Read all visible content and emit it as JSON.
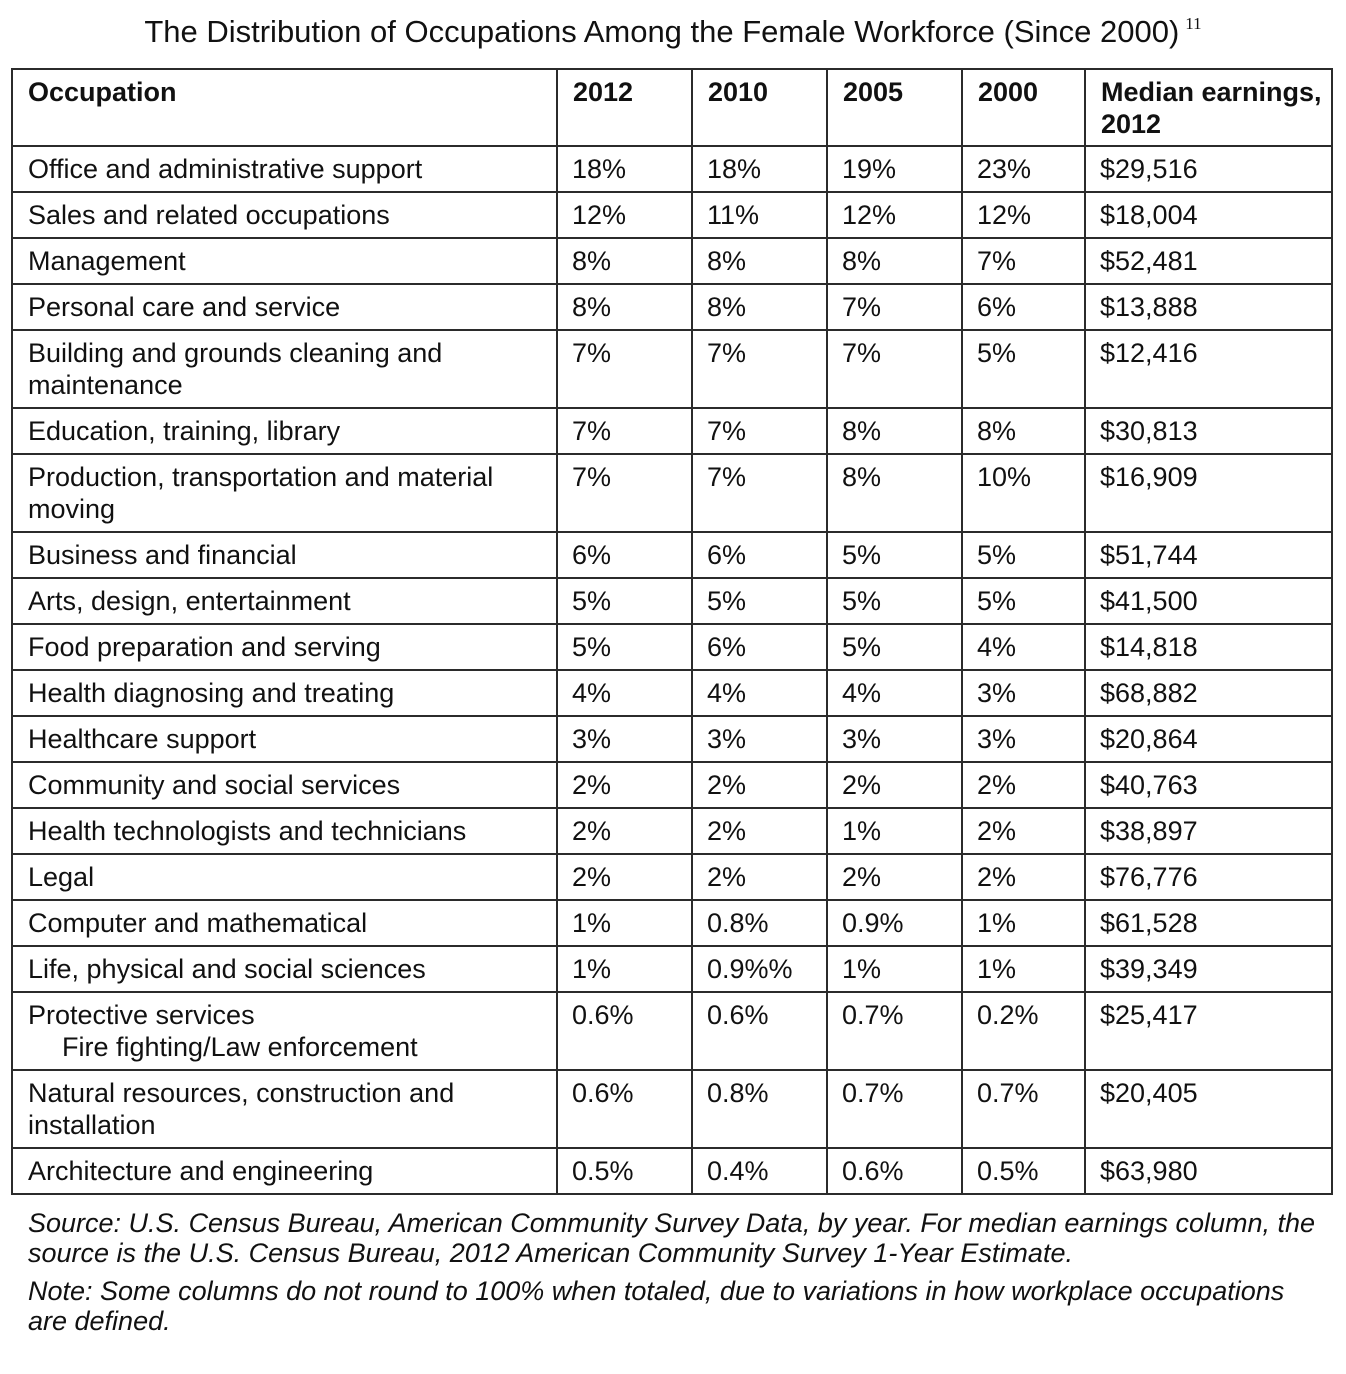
{
  "title": "The Distribution of Occupations Among the Female Workforce (Since 2000)",
  "footnote_ref": "11",
  "table": {
    "headers": [
      "Occupation",
      "2012",
      "2010",
      "2005",
      "2000",
      "Median earnings, 2012"
    ],
    "rows": [
      {
        "occupation": "Office and administrative support",
        "v2012": "18%",
        "v2010": "18%",
        "v2005": "19%",
        "v2000": "23%",
        "earnings": "$29,516"
      },
      {
        "occupation": "Sales and related occupations",
        "v2012": "12%",
        "v2010": "11%",
        "v2005": "12%",
        "v2000": "12%",
        "earnings": "$18,004"
      },
      {
        "occupation": "Management",
        "v2012": "8%",
        "v2010": "8%",
        "v2005": "8%",
        "v2000": "7%",
        "earnings": "$52,481"
      },
      {
        "occupation": "Personal care and service",
        "v2012": "8%",
        "v2010": "8%",
        "v2005": "7%",
        "v2000": "6%",
        "earnings": "$13,888"
      },
      {
        "occupation": "Building and grounds cleaning and maintenance",
        "v2012": "7%",
        "v2010": "7%",
        "v2005": "7%",
        "v2000": "5%",
        "earnings": "$12,416"
      },
      {
        "occupation": "Education, training, library",
        "v2012": "7%",
        "v2010": "7%",
        "v2005": "8%",
        "v2000": "8%",
        "earnings": "$30,813"
      },
      {
        "occupation": "Production, transportation and material moving",
        "v2012": "7%",
        "v2010": "7%",
        "v2005": "8%",
        "v2000": "10%",
        "earnings": "$16,909"
      },
      {
        "occupation": "Business and financial",
        "v2012": "6%",
        "v2010": "6%",
        "v2005": "5%",
        "v2000": "5%",
        "earnings": "$51,744"
      },
      {
        "occupation": "Arts, design, entertainment",
        "v2012": "5%",
        "v2010": "5%",
        "v2005": "5%",
        "v2000": "5%",
        "earnings": "$41,500"
      },
      {
        "occupation": "Food preparation and serving",
        "v2012": "5%",
        "v2010": "6%",
        "v2005": "5%",
        "v2000": "4%",
        "earnings": "$14,818"
      },
      {
        "occupation": "Health diagnosing and treating",
        "v2012": "4%",
        "v2010": "4%",
        "v2005": "4%",
        "v2000": "3%",
        "earnings": "$68,882"
      },
      {
        "occupation": "Healthcare support",
        "v2012": "3%",
        "v2010": "3%",
        "v2005": "3%",
        "v2000": "3%",
        "earnings": "$20,864"
      },
      {
        "occupation": "Community and social services",
        "v2012": "2%",
        "v2010": "2%",
        "v2005": "2%",
        "v2000": "2%",
        "earnings": "$40,763"
      },
      {
        "occupation": "Health technologists and technicians",
        "v2012": "2%",
        "v2010": "2%",
        "v2005": "1%",
        "v2000": "2%",
        "earnings": "$38,897"
      },
      {
        "occupation": "Legal",
        "v2012": "2%",
        "v2010": "2%",
        "v2005": "2%",
        "v2000": "2%",
        "earnings": "$76,776"
      },
      {
        "occupation": "Computer and mathematical",
        "v2012": "1%",
        "v2010": "0.8%",
        "v2005": "0.9%",
        "v2000": "1%",
        "earnings": "$61,528"
      },
      {
        "occupation": "Life, physical and social sciences",
        "v2012": "1%",
        "v2010": "0.9%%",
        "v2005": "1%",
        "v2000": "1%",
        "earnings": "$39,349"
      },
      {
        "occupation": "Protective services",
        "sub": "Fire fighting/Law enforcement",
        "v2012": "0.6%",
        "v2010": "0.6%",
        "v2005": "0.7%",
        "v2000": "0.2%",
        "earnings": "$25,417"
      },
      {
        "occupation": "Natural resources, construction and installation",
        "v2012": "0.6%",
        "v2010": "0.8%",
        "v2005": "0.7%",
        "v2000": "0.7%",
        "earnings": "$20,405"
      },
      {
        "occupation": "Architecture and engineering",
        "v2012": "0.5%",
        "v2010": "0.4%",
        "v2005": "0.6%",
        "v2000": "0.5%",
        "earnings": "$63,980"
      }
    ]
  },
  "source_note": "Source: U.S. Census Bureau, American Community Survey Data, by year. For median earnings column, the source is the U.S. Census Bureau, 2012 American Community Survey 1-Year Estimate.",
  "note": "Note: Some columns do not round to 100% when totaled, due to variations in how workplace occupations are defined."
}
